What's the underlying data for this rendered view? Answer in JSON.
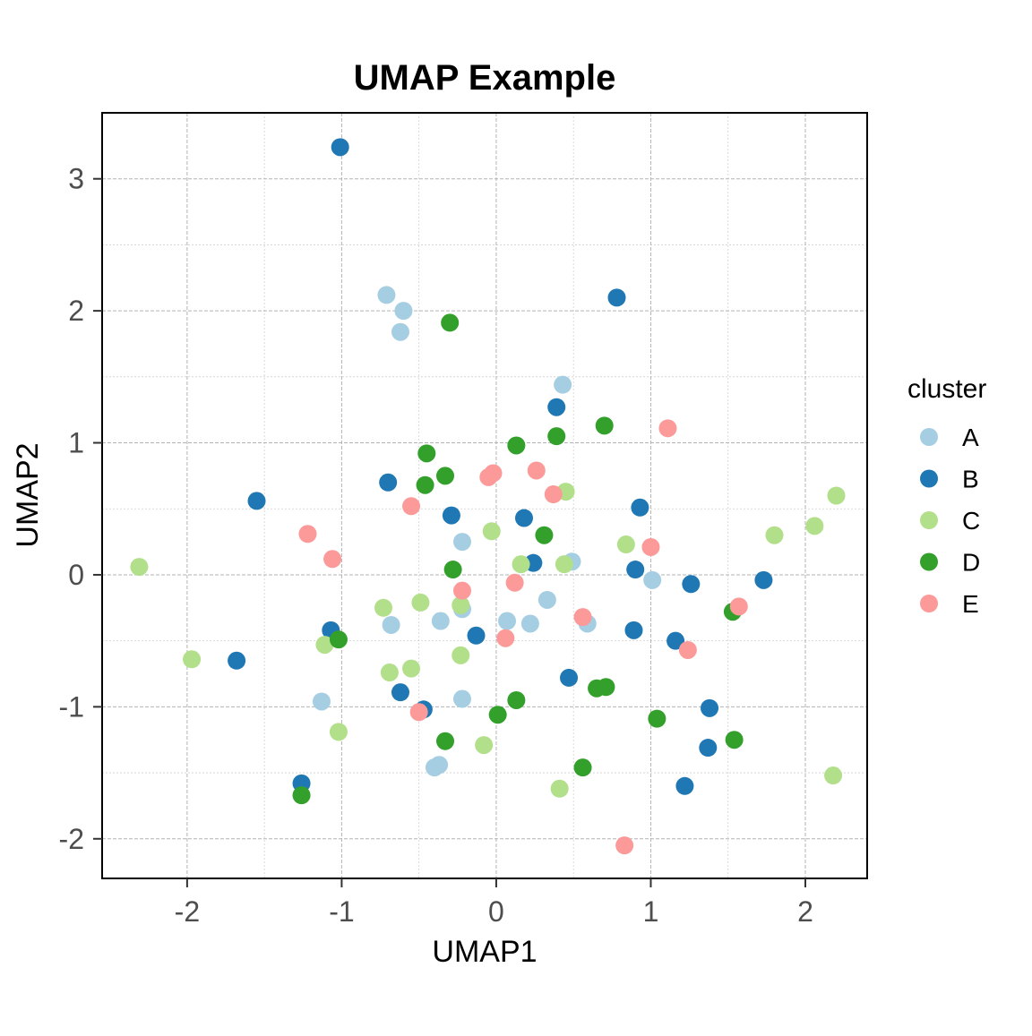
{
  "chart_data": {
    "type": "scatter",
    "title": "UMAP Example",
    "xlabel": "UMAP1",
    "ylabel": "UMAP2",
    "xlim": [
      -2.55,
      2.4
    ],
    "ylim": [
      -2.3,
      3.5
    ],
    "x_ticks": [
      -2,
      -1,
      0,
      1,
      2
    ],
    "y_ticks": [
      -2,
      -1,
      0,
      1,
      2,
      3
    ],
    "x_tick_labels": [
      "-2",
      "-1",
      "0",
      "1",
      "2"
    ],
    "y_tick_labels": [
      "-2",
      "-1",
      "0",
      "1",
      "2",
      "3"
    ],
    "grid": true,
    "legend": {
      "title": "cluster",
      "position": "right"
    },
    "series": [
      {
        "name": "A",
        "color": "#a6cee3",
        "points": [
          [
            -0.71,
            2.12
          ],
          [
            -0.6,
            2.0
          ],
          [
            -0.62,
            1.84
          ],
          [
            0.43,
            1.44
          ],
          [
            0.49,
            0.1
          ],
          [
            -0.22,
            0.25
          ],
          [
            1.01,
            -0.04
          ],
          [
            0.33,
            -0.19
          ],
          [
            -0.68,
            -0.38
          ],
          [
            -0.36,
            -0.35
          ],
          [
            -0.22,
            -0.26
          ],
          [
            0.07,
            -0.35
          ],
          [
            0.22,
            -0.37
          ],
          [
            0.59,
            -0.37
          ],
          [
            -1.13,
            -0.96
          ],
          [
            -0.22,
            -0.94
          ],
          [
            -0.37,
            -1.44
          ],
          [
            -0.4,
            -1.46
          ]
        ]
      },
      {
        "name": "B",
        "color": "#1f78b4",
        "points": [
          [
            -1.01,
            3.24
          ],
          [
            0.78,
            2.1
          ],
          [
            0.39,
            1.27
          ],
          [
            -0.7,
            0.7
          ],
          [
            -1.55,
            0.56
          ],
          [
            -0.29,
            0.45
          ],
          [
            0.18,
            0.43
          ],
          [
            0.93,
            0.51
          ],
          [
            0.24,
            0.09
          ],
          [
            0.9,
            0.04
          ],
          [
            1.26,
            -0.07
          ],
          [
            1.73,
            -0.04
          ],
          [
            -1.07,
            -0.42
          ],
          [
            -0.13,
            -0.46
          ],
          [
            0.89,
            -0.42
          ],
          [
            1.16,
            -0.5
          ],
          [
            -1.68,
            -0.65
          ],
          [
            0.47,
            -0.78
          ],
          [
            -0.62,
            -0.89
          ],
          [
            -0.47,
            -1.02
          ],
          [
            1.38,
            -1.01
          ],
          [
            1.37,
            -1.31
          ],
          [
            -1.26,
            -1.58
          ],
          [
            1.22,
            -1.6
          ]
        ]
      },
      {
        "name": "C",
        "color": "#b2df8a",
        "points": [
          [
            -2.31,
            0.06
          ],
          [
            0.45,
            0.63
          ],
          [
            -0.03,
            0.33
          ],
          [
            2.2,
            0.6
          ],
          [
            2.06,
            0.37
          ],
          [
            1.8,
            0.3
          ],
          [
            0.84,
            0.23
          ],
          [
            0.16,
            0.08
          ],
          [
            0.44,
            0.08
          ],
          [
            -0.49,
            -0.21
          ],
          [
            -0.73,
            -0.25
          ],
          [
            -0.23,
            -0.23
          ],
          [
            -1.11,
            -0.53
          ],
          [
            -1.97,
            -0.64
          ],
          [
            -0.23,
            -0.61
          ],
          [
            -0.69,
            -0.74
          ],
          [
            -0.55,
            -0.71
          ],
          [
            -1.02,
            -1.19
          ],
          [
            -0.08,
            -1.29
          ],
          [
            0.41,
            -1.62
          ],
          [
            2.18,
            -1.52
          ]
        ]
      },
      {
        "name": "D",
        "color": "#33a02c",
        "points": [
          [
            -0.3,
            1.91
          ],
          [
            0.7,
            1.13
          ],
          [
            0.13,
            0.98
          ],
          [
            0.39,
            1.05
          ],
          [
            -0.45,
            0.92
          ],
          [
            -0.33,
            0.75
          ],
          [
            -0.46,
            0.68
          ],
          [
            0.31,
            0.3
          ],
          [
            -0.28,
            0.04
          ],
          [
            1.53,
            -0.28
          ],
          [
            -1.02,
            -0.49
          ],
          [
            0.13,
            -0.95
          ],
          [
            0.65,
            -0.86
          ],
          [
            0.71,
            -0.85
          ],
          [
            0.01,
            -1.06
          ],
          [
            1.04,
            -1.09
          ],
          [
            -0.33,
            -1.26
          ],
          [
            1.54,
            -1.25
          ],
          [
            0.56,
            -1.46
          ],
          [
            -1.26,
            -1.67
          ]
        ]
      },
      {
        "name": "E",
        "color": "#fb9a99",
        "points": [
          [
            1.11,
            1.11
          ],
          [
            0.26,
            0.79
          ],
          [
            -0.02,
            0.77
          ],
          [
            -0.05,
            0.74
          ],
          [
            0.37,
            0.61
          ],
          [
            -0.55,
            0.52
          ],
          [
            -1.22,
            0.31
          ],
          [
            -1.06,
            0.12
          ],
          [
            1.0,
            0.21
          ],
          [
            -0.22,
            -0.12
          ],
          [
            0.12,
            -0.06
          ],
          [
            1.57,
            -0.24
          ],
          [
            0.56,
            -0.32
          ],
          [
            0.06,
            -0.48
          ],
          [
            1.24,
            -0.57
          ],
          [
            -0.5,
            -1.04
          ],
          [
            0.83,
            -2.05
          ]
        ]
      }
    ]
  }
}
